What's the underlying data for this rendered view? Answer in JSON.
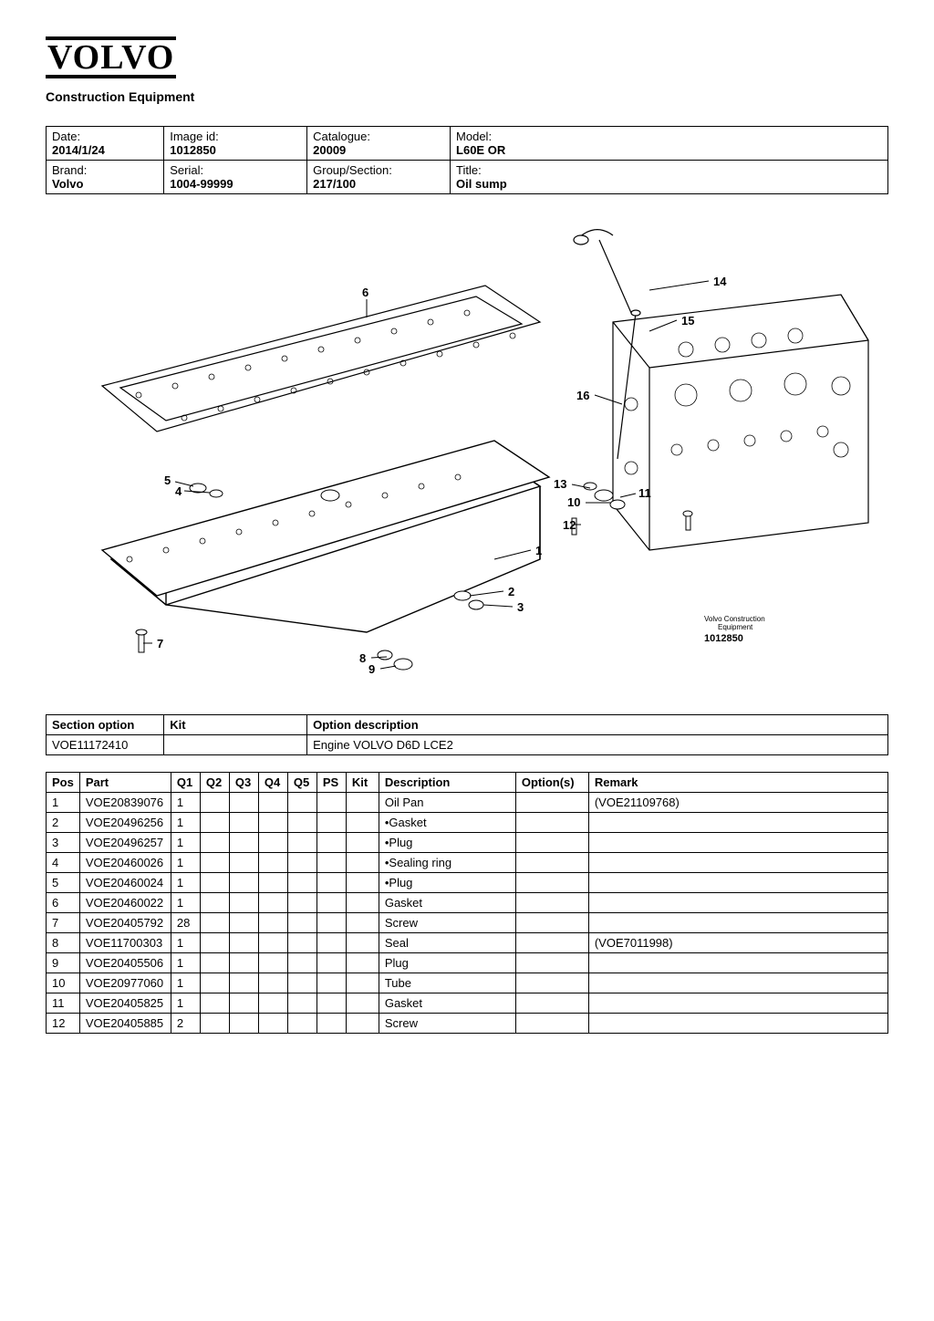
{
  "brand": {
    "logo_text": "VOLVO",
    "subtitle": "Construction Equipment"
  },
  "info": {
    "cells": [
      [
        {
          "label": "Date:",
          "value": "2014/1/24"
        },
        {
          "label": "Image id:",
          "value": "1012850"
        },
        {
          "label": "Catalogue:",
          "value": "20009"
        },
        {
          "label": "Model:",
          "value": "L60E OR"
        }
      ],
      [
        {
          "label": "Brand:",
          "value": "Volvo"
        },
        {
          "label": "Serial:",
          "value": "1004-99999"
        },
        {
          "label": "Group/Section:",
          "value": "217/100"
        },
        {
          "label": "Title:",
          "value": "Oil sump"
        }
      ]
    ],
    "col_widths": [
      "14%",
      "17%",
      "17%",
      "52%"
    ]
  },
  "diagram": {
    "callouts": [
      "1",
      "2",
      "3",
      "4",
      "5",
      "6",
      "7",
      "8",
      "9",
      "10",
      "11",
      "12",
      "13",
      "14",
      "15",
      "16"
    ],
    "image_label_line1": "Volvo Construction",
    "image_label_line2": "Equipment",
    "image_id": "1012850"
  },
  "option_table": {
    "headers": [
      "Section option",
      "Kit",
      "Option description"
    ],
    "col_widths": [
      "14%",
      "17%",
      "69%"
    ],
    "rows": [
      [
        "VOE11172410",
        "",
        "Engine VOLVO D6D LCE2"
      ]
    ]
  },
  "parts_table": {
    "headers": [
      "Pos",
      "Part",
      "Q1",
      "Q2",
      "Q3",
      "Q4",
      "Q5",
      "PS",
      "Kit",
      "Description",
      "Option(s)",
      "Remark"
    ],
    "rows": [
      {
        "pos": "1",
        "part": "VOE20839076",
        "q1": "1",
        "q2": "",
        "q3": "",
        "q4": "",
        "q5": "",
        "ps": "",
        "kit": "",
        "desc": "Oil Pan",
        "opt": "",
        "remark": "(VOE21109768)"
      },
      {
        "pos": "2",
        "part": "VOE20496256",
        "q1": "1",
        "q2": "",
        "q3": "",
        "q4": "",
        "q5": "",
        "ps": "",
        "kit": "",
        "desc": "•Gasket",
        "opt": "",
        "remark": ""
      },
      {
        "pos": "3",
        "part": "VOE20496257",
        "q1": "1",
        "q2": "",
        "q3": "",
        "q4": "",
        "q5": "",
        "ps": "",
        "kit": "",
        "desc": "•Plug",
        "opt": "",
        "remark": ""
      },
      {
        "pos": "4",
        "part": "VOE20460026",
        "q1": "1",
        "q2": "",
        "q3": "",
        "q4": "",
        "q5": "",
        "ps": "",
        "kit": "",
        "desc": "•Sealing ring",
        "opt": "",
        "remark": ""
      },
      {
        "pos": "5",
        "part": "VOE20460024",
        "q1": "1",
        "q2": "",
        "q3": "",
        "q4": "",
        "q5": "",
        "ps": "",
        "kit": "",
        "desc": "•Plug",
        "opt": "",
        "remark": ""
      },
      {
        "pos": "6",
        "part": "VOE20460022",
        "q1": "1",
        "q2": "",
        "q3": "",
        "q4": "",
        "q5": "",
        "ps": "",
        "kit": "",
        "desc": "Gasket",
        "opt": "",
        "remark": ""
      },
      {
        "pos": "7",
        "part": "VOE20405792",
        "q1": "28",
        "q2": "",
        "q3": "",
        "q4": "",
        "q5": "",
        "ps": "",
        "kit": "",
        "desc": "Screw",
        "opt": "",
        "remark": ""
      },
      {
        "pos": "8",
        "part": "VOE11700303",
        "q1": "1",
        "q2": "",
        "q3": "",
        "q4": "",
        "q5": "",
        "ps": "",
        "kit": "",
        "desc": "Seal",
        "opt": "",
        "remark": "(VOE7011998)"
      },
      {
        "pos": "9",
        "part": "VOE20405506",
        "q1": "1",
        "q2": "",
        "q3": "",
        "q4": "",
        "q5": "",
        "ps": "",
        "kit": "",
        "desc": "Plug",
        "opt": "",
        "remark": ""
      },
      {
        "pos": "10",
        "part": "VOE20977060",
        "q1": "1",
        "q2": "",
        "q3": "",
        "q4": "",
        "q5": "",
        "ps": "",
        "kit": "",
        "desc": "Tube",
        "opt": "",
        "remark": ""
      },
      {
        "pos": "11",
        "part": "VOE20405825",
        "q1": "1",
        "q2": "",
        "q3": "",
        "q4": "",
        "q5": "",
        "ps": "",
        "kit": "",
        "desc": "Gasket",
        "opt": "",
        "remark": ""
      },
      {
        "pos": "12",
        "part": "VOE20405885",
        "q1": "2",
        "q2": "",
        "q3": "",
        "q4": "",
        "q5": "",
        "ps": "",
        "kit": "",
        "desc": "Screw",
        "opt": "",
        "remark": ""
      }
    ]
  }
}
